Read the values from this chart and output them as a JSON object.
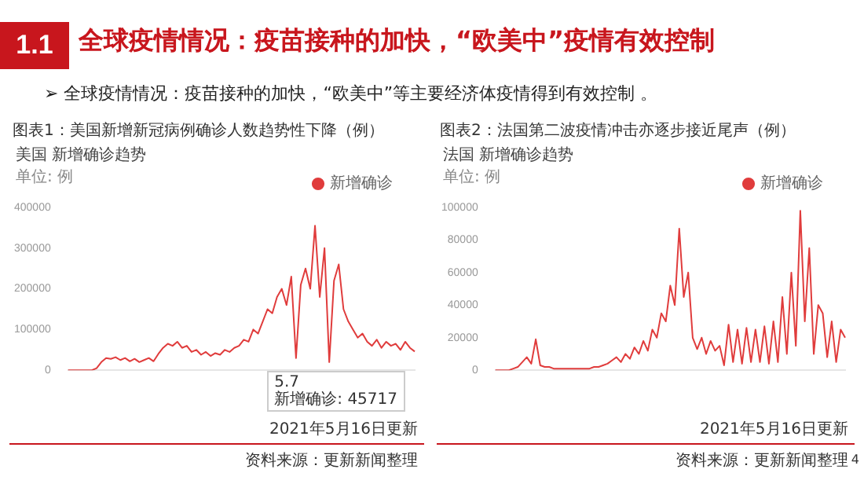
{
  "chart_data": [
    {
      "type": "other",
      "title": "全球疫情情况：疫苗接种的加快，“欧美中”疫情有效控制",
      "annotations": [
        "1.1",
        "➢ 全球疫情情况：疫苗接种的加快，“欧美中”等主要经济体疫情得到有效控制 。",
        "4"
      ]
    },
    {
      "type": "line",
      "title": "图表1：美国新增新冠病例确诊人数趋势性下降（例）",
      "subtitle": "美国 新增确诊趋势",
      "ylabel": "单位: 例",
      "categories": [
        null,
        null,
        null,
        null,
        null,
        null,
        null,
        null,
        null,
        null,
        null,
        null,
        null,
        null,
        null,
        null,
        null,
        null,
        null,
        null,
        null,
        null,
        null,
        null,
        null,
        null,
        null,
        null,
        null,
        null,
        null,
        null,
        null,
        null,
        null,
        null,
        null,
        null,
        null,
        null,
        null,
        null,
        null,
        null,
        null,
        null,
        null,
        null,
        null,
        null,
        null,
        null,
        null,
        null,
        null,
        null,
        null,
        null,
        null,
        null,
        null,
        null,
        null,
        null,
        null,
        null,
        null,
        null,
        null,
        null,
        null,
        null,
        null,
        null
      ],
      "series": [
        {
          "name": "新增确诊",
          "color": "#e03c3c",
          "values": [
            0,
            0,
            0,
            0,
            0,
            0,
            5000,
            20000,
            30000,
            28000,
            32000,
            25000,
            30000,
            22000,
            28000,
            20000,
            25000,
            30000,
            22000,
            40000,
            55000,
            65000,
            60000,
            70000,
            55000,
            60000,
            45000,
            50000,
            38000,
            45000,
            35000,
            42000,
            38000,
            50000,
            45000,
            55000,
            60000,
            75000,
            70000,
            100000,
            90000,
            120000,
            150000,
            140000,
            180000,
            200000,
            160000,
            230000,
            30000,
            210000,
            250000,
            200000,
            355000,
            180000,
            300000,
            20000,
            220000,
            260000,
            150000,
            120000,
            100000,
            80000,
            90000,
            70000,
            60000,
            75000,
            55000,
            70000,
            60000,
            65000,
            50000,
            70000,
            55000,
            46000
          ]
        }
      ],
      "ylim": [
        0,
        400000
      ],
      "yticks": [
        0,
        100000,
        200000,
        300000,
        400000
      ],
      "grid": false,
      "legend": "top right",
      "marker": "none",
      "line_style": "solid",
      "annotations": [
        "5.7\n新增确诊: 45717",
        "2021年5月16日更新",
        "资料来源：更新新闻整理"
      ]
    },
    {
      "type": "line",
      "title": "图表2：法国第二波疫情冲击亦逐步接近尾声（例）",
      "subtitle": "法国 新增确诊趋势",
      "ylabel": "单位: 例",
      "categories": [
        null,
        null,
        null,
        null,
        null,
        null,
        null,
        null,
        null,
        null,
        null,
        null,
        null,
        null,
        null,
        null,
        null,
        null,
        null,
        null,
        null,
        null,
        null,
        null,
        null,
        null,
        null,
        null,
        null,
        null,
        null,
        null,
        null,
        null,
        null,
        null,
        null,
        null,
        null,
        null,
        null,
        null,
        null,
        null,
        null,
        null,
        null,
        null,
        null,
        null,
        null,
        null,
        null,
        null,
        null,
        null,
        null,
        null,
        null,
        null,
        null,
        null,
        null,
        null,
        null,
        null,
        null,
        null,
        null,
        null,
        null,
        null,
        null,
        null,
        null,
        null,
        null,
        null,
        null
      ],
      "series": [
        {
          "name": "新增确诊",
          "color": "#e03c3c",
          "values": [
            0,
            0,
            0,
            0,
            1000,
            2000,
            5000,
            8000,
            4000,
            19000,
            3000,
            2000,
            2000,
            1000,
            1000,
            1000,
            1000,
            1000,
            1000,
            1000,
            1000,
            1000,
            2000,
            2000,
            3000,
            4000,
            6000,
            8000,
            5000,
            10000,
            7000,
            14000,
            10000,
            18000,
            12000,
            25000,
            20000,
            35000,
            30000,
            52000,
            40000,
            87000,
            45000,
            60000,
            20000,
            13000,
            20000,
            10000,
            18000,
            12000,
            15000,
            3000,
            28000,
            5000,
            25000,
            4000,
            26000,
            5000,
            25000,
            5000,
            27000,
            4000,
            30000,
            5000,
            45000,
            10000,
            60000,
            15000,
            98000,
            30000,
            75000,
            10000,
            40000,
            35000,
            8000,
            30000,
            5000,
            25000,
            20000
          ]
        }
      ],
      "ylim": [
        0,
        100000
      ],
      "yticks": [
        0,
        20000,
        40000,
        60000,
        80000,
        100000
      ],
      "grid": false,
      "legend": "top right",
      "marker": "none",
      "line_style": "solid",
      "annotations": [
        "2021年5月16日更新",
        "资料来源：更新新闻整理"
      ]
    }
  ]
}
